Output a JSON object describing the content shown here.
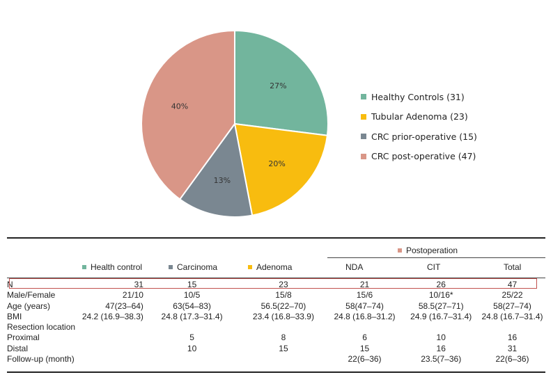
{
  "chart_data": {
    "type": "pie",
    "title": "",
    "slices": [
      {
        "name": "Healthy Controls (31)",
        "value": 27,
        "label": "27%",
        "color": "#72b59d"
      },
      {
        "name": "Tubular Adenoma (23)",
        "value": 20,
        "label": "20%",
        "color": "#f8bc0f"
      },
      {
        "name": "CRC prior-operative (15)",
        "value": 13,
        "label": "13%",
        "color": "#7a8791"
      },
      {
        "name": "CRC post-operative (47)",
        "value": 40,
        "label": "40%",
        "color": "#d99687"
      }
    ],
    "legend_position": "right"
  },
  "table": {
    "group_header": {
      "label": "Postoperation",
      "color": "#d99687"
    },
    "columns": [
      {
        "label": "Health control",
        "color": "#72b59d"
      },
      {
        "label": "Carcinoma",
        "color": "#7a8791"
      },
      {
        "label": "Adenoma",
        "color": "#f8bc0f"
      },
      {
        "label": "NDA"
      },
      {
        "label": "CIT"
      },
      {
        "label": "Total"
      }
    ],
    "rows": [
      {
        "label": "N",
        "cells": [
          "31",
          "15",
          "23",
          "21",
          "26",
          "47"
        ]
      },
      {
        "label": "Male/Female",
        "cells": [
          "21/10",
          "10/5",
          "15/8",
          "15/6",
          "10/16*",
          "25/22"
        ]
      },
      {
        "label": "Age (years)",
        "cells": [
          "47(23–64)",
          "63(54–83)",
          "56.5(22–70)",
          "58(47–74)",
          "58.5(27–71)",
          "58(27–74)"
        ]
      },
      {
        "label": "BMI",
        "cells": [
          "24.2 (16.9–38.3)",
          "24.8 (17.3–31.4)",
          "23.4 (16.8–33.9)",
          "24.8 (16.8–31.2)",
          "24.9 (16.7–31.4)",
          "24.8 (16.7–31.4)"
        ]
      },
      {
        "label": "Resection location",
        "cells": [
          "",
          "",
          "",
          "",
          "",
          ""
        ]
      },
      {
        "label": "Proximal",
        "cells": [
          "",
          "5",
          "8",
          "6",
          "10",
          "16"
        ]
      },
      {
        "label": "Distal",
        "cells": [
          "",
          "10",
          "15",
          "15",
          "16",
          "31"
        ]
      },
      {
        "label": "Follow-up (month)",
        "cells": [
          "",
          "",
          "",
          "22(6–36)",
          "23.5(7–36)",
          "22(6–36)"
        ]
      }
    ]
  }
}
